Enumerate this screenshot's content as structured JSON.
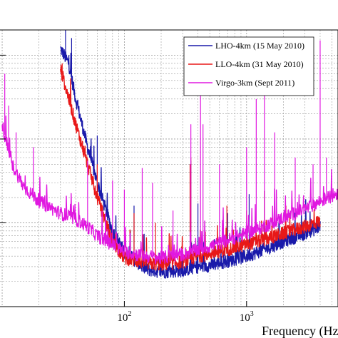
{
  "chart_data": {
    "type": "line",
    "xlabel": "Frequency (Hz",
    "x_scale": "log",
    "x_ticks": [
      {
        "value": 100,
        "base": "10",
        "exp": "2"
      },
      {
        "value": 1000,
        "base": "10",
        "exp": "3"
      }
    ],
    "xlim": [
      10,
      6000
    ],
    "y_scale": "log",
    "ylim": [
      1e-24,
      2e-21
    ],
    "grid": true,
    "legend_position": "top-right",
    "series": [
      {
        "name": "LHO-4km (15 May 2010)",
        "color": "#1a1aaa",
        "floor": [
          [
            30,
            1.2e-21
          ],
          [
            35,
            8e-22
          ],
          [
            40,
            3e-22
          ],
          [
            50,
            8e-23
          ],
          [
            60,
            3e-23
          ],
          [
            80,
            8e-24
          ],
          [
            100,
            4.5e-24
          ],
          [
            150,
            2.8e-24
          ],
          [
            200,
            2.6e-24
          ],
          [
            300,
            2.7e-24
          ],
          [
            400,
            3e-24
          ],
          [
            500,
            3.1e-24
          ],
          [
            700,
            3.5e-24
          ],
          [
            1000,
            4e-24
          ],
          [
            1500,
            5e-24
          ],
          [
            2000,
            6e-24
          ],
          [
            3000,
            7.5e-24
          ],
          [
            4000,
            9e-24
          ]
        ],
        "lines": [
          [
            33,
            2e-21
          ],
          [
            37,
            1.6e-21
          ],
          [
            60,
            1.1e-22
          ],
          [
            120,
            1.6e-23
          ],
          [
            345,
            5e-23
          ],
          [
            350,
            5.5e-23
          ],
          [
            400,
            1.7e-23
          ],
          [
            700,
            1.3e-23
          ],
          [
            1050,
            2.2e-23
          ],
          [
            1400,
            2.4e-23
          ]
        ]
      },
      {
        "name": "LLO-4km (31 May 2010)",
        "color": "#e81818",
        "floor": [
          [
            30,
            7e-22
          ],
          [
            40,
            1.5e-22
          ],
          [
            50,
            5e-23
          ],
          [
            60,
            2e-23
          ],
          [
            80,
            6e-24
          ],
          [
            100,
            3.8e-24
          ],
          [
            150,
            3.3e-24
          ],
          [
            200,
            3.2e-24
          ],
          [
            300,
            3.4e-24
          ],
          [
            400,
            4e-24
          ],
          [
            500,
            4.3e-24
          ],
          [
            700,
            4.8e-24
          ],
          [
            1000,
            5.5e-24
          ],
          [
            1500,
            6.5e-24
          ],
          [
            2000,
            7.5e-24
          ],
          [
            3000,
            9e-24
          ],
          [
            4000,
            1.05e-23
          ]
        ],
        "lines": [
          [
            31,
            8e-22
          ],
          [
            60,
            5e-23
          ],
          [
            120,
            1.3e-23
          ],
          [
            180,
            1e-23
          ],
          [
            345,
            5e-23
          ],
          [
            350,
            6e-23
          ],
          [
            690,
            1.6e-23
          ],
          [
            1000,
            1.4e-23
          ],
          [
            1400,
            2.4e-23
          ],
          [
            2100,
            1.6e-23
          ]
        ]
      },
      {
        "name": "Virgo-3km (Sept 2011)",
        "color": "#e018e0",
        "floor": [
          [
            10,
            1.5e-22
          ],
          [
            12,
            5e-23
          ],
          [
            15,
            2.7e-23
          ],
          [
            20,
            1.8e-23
          ],
          [
            30,
            1.3e-23
          ],
          [
            40,
            1.1e-23
          ],
          [
            50,
            9e-24
          ],
          [
            60,
            7e-24
          ],
          [
            80,
            5.5e-24
          ],
          [
            100,
            4.5e-24
          ],
          [
            150,
            4e-24
          ],
          [
            200,
            3.8e-24
          ],
          [
            300,
            4.2e-24
          ],
          [
            400,
            4.8e-24
          ],
          [
            500,
            5.2e-24
          ],
          [
            700,
            6.2e-24
          ],
          [
            1000,
            7.5e-24
          ],
          [
            1500,
            9.5e-24
          ],
          [
            2000,
            1.15e-23
          ],
          [
            3000,
            1.45e-23
          ],
          [
            4000,
            1.8e-23
          ],
          [
            6000,
            2.4e-23
          ]
        ],
        "lines": [
          [
            10.5,
            6e-22
          ],
          [
            11.3,
            2.5e-22
          ],
          [
            13,
            1.2e-22
          ],
          [
            18,
            8e-23
          ],
          [
            50,
            5.5e-23
          ],
          [
            80,
            3.2e-23
          ],
          [
            100,
            2.5e-23
          ],
          [
            140,
            4.5e-23
          ],
          [
            170,
            3e-23
          ],
          [
            250,
            1.4e-23
          ],
          [
            350,
            1.5e-22
          ],
          [
            420,
            3.8e-22
          ],
          [
            440,
            1.5e-22
          ],
          [
            600,
            5e-23
          ],
          [
            1000,
            8e-23
          ],
          [
            1200,
            3e-22
          ],
          [
            1400,
            4e-22
          ],
          [
            1700,
            1.2e-22
          ],
          [
            2500,
            6e-23
          ],
          [
            3500,
            5e-23
          ],
          [
            4000,
            1.5e-21
          ],
          [
            4500,
            6e-23
          ]
        ]
      }
    ]
  }
}
